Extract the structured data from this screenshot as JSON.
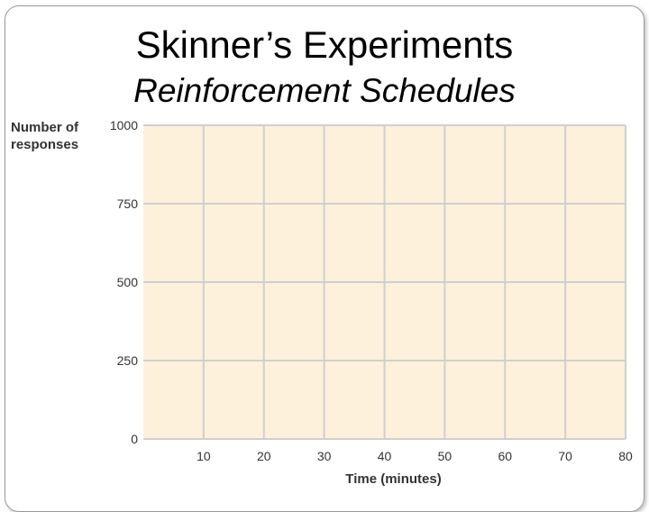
{
  "slide": {
    "title": "Skinner’s Experiments",
    "subtitle": "Reinforcement Schedules"
  },
  "chart_data": {
    "type": "line",
    "ylabel_lines": [
      "Number of",
      "responses"
    ],
    "xlabel": "Time (minutes)",
    "xlim": [
      0,
      80
    ],
    "ylim": [
      0,
      1000
    ],
    "x_ticks": [
      10,
      20,
      30,
      40,
      50,
      60,
      70,
      80
    ],
    "y_ticks": [
      0,
      250,
      500,
      750,
      1000
    ],
    "grid": true,
    "series": [],
    "colors": {
      "plot_background": "#fdf1dc",
      "grid": "#cfcfcf"
    }
  }
}
